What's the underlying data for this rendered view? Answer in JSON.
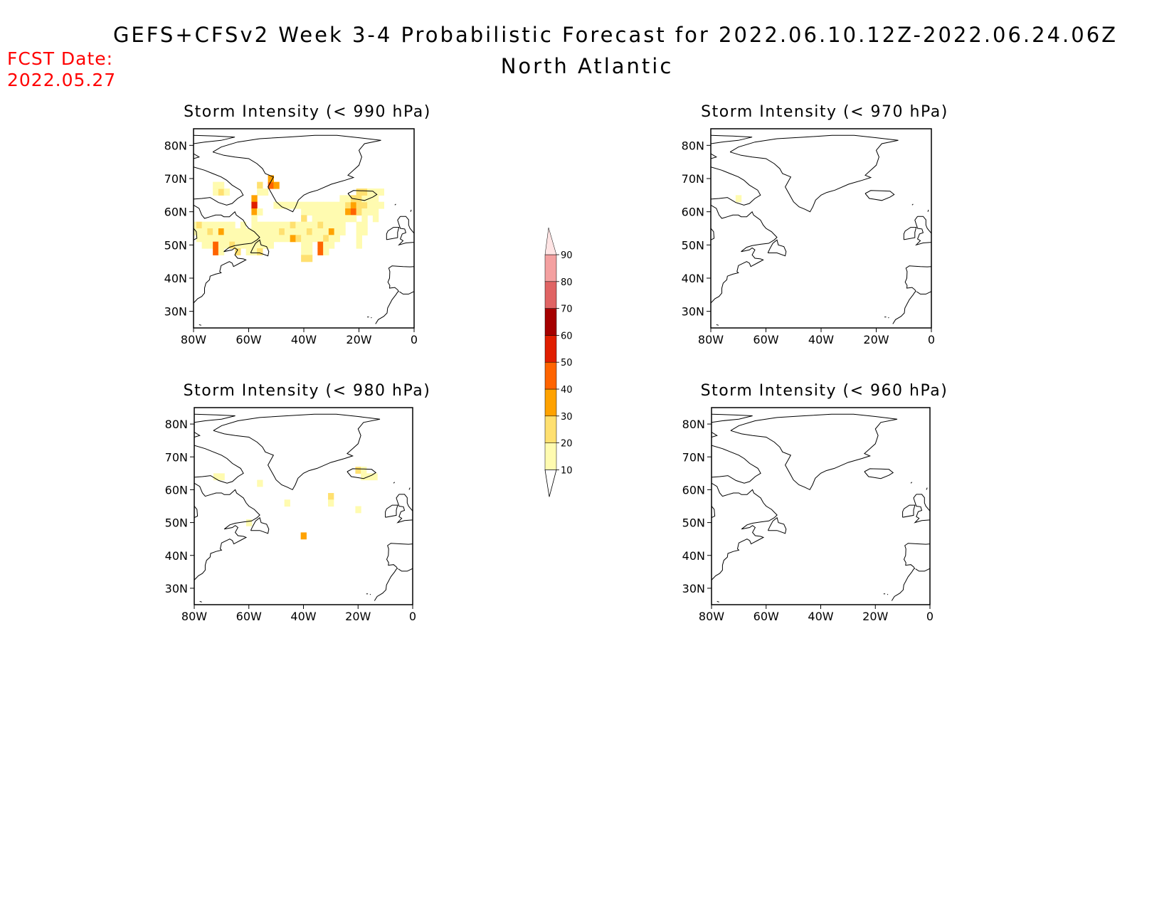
{
  "title": "GEFS+CFSv2 Week 3-4 Probabilistic Forecast for 2022.06.10.12Z-2022.06.24.06Z",
  "subtitle": "North Atlantic",
  "fcst_date_label": "FCST Date:",
  "fcst_date": "2022.05.27",
  "lat_labels": [
    "80N",
    "70N",
    "60N",
    "50N",
    "40N",
    "30N"
  ],
  "lon_labels": [
    "80W",
    "60W",
    "40W",
    "20W",
    "0"
  ],
  "colorbar": {
    "levels": [
      "10",
      "20",
      "30",
      "40",
      "50",
      "60",
      "70",
      "80",
      "90"
    ],
    "colors": [
      "#fffbb0",
      "#ffe070",
      "#ffa200",
      "#ff6400",
      "#e01e00",
      "#a50000",
      "#e06464",
      "#f4a0a0",
      "#ffe4e4"
    ]
  },
  "panels": [
    {
      "title": "Storm Intensity (< 990 hPa)",
      "cells": [
        [
          -72,
          66,
          1
        ],
        [
          -70,
          66,
          2
        ],
        [
          -72,
          68,
          1
        ],
        [
          -70,
          68,
          1
        ],
        [
          -68,
          66,
          1
        ],
        [
          -56,
          68,
          2
        ],
        [
          -56,
          66,
          1
        ],
        [
          -54,
          66,
          1
        ],
        [
          -52,
          68,
          4
        ],
        [
          -50,
          68,
          3
        ],
        [
          -52,
          70,
          3
        ],
        [
          -58,
          64,
          3
        ],
        [
          -58,
          62,
          5
        ],
        [
          -58,
          60,
          3
        ],
        [
          -56,
          60,
          1
        ],
        [
          -58,
          58,
          1
        ],
        [
          -50,
          62,
          1
        ],
        [
          -48,
          62,
          1
        ],
        [
          -46,
          62,
          1
        ],
        [
          -44,
          62,
          1
        ],
        [
          -42,
          62,
          1
        ],
        [
          -40,
          62,
          1
        ],
        [
          -38,
          62,
          1
        ],
        [
          -36,
          62,
          1
        ],
        [
          -34,
          62,
          1
        ],
        [
          -32,
          62,
          1
        ],
        [
          -30,
          62,
          1
        ],
        [
          -28,
          62,
          1
        ],
        [
          -26,
          62,
          1
        ],
        [
          -24,
          62,
          2
        ],
        [
          -22,
          62,
          3
        ],
        [
          -20,
          62,
          2
        ],
        [
          -18,
          62,
          2
        ],
        [
          -16,
          62,
          1
        ],
        [
          -14,
          62,
          1
        ],
        [
          -12,
          62,
          1
        ],
        [
          -26,
          64,
          1
        ],
        [
          -24,
          64,
          1
        ],
        [
          -22,
          64,
          2
        ],
        [
          -20,
          64,
          2
        ],
        [
          -18,
          64,
          1
        ],
        [
          -16,
          64,
          1
        ],
        [
          -14,
          64,
          1
        ],
        [
          -20,
          66,
          2
        ],
        [
          -18,
          66,
          2
        ],
        [
          -16,
          66,
          1
        ],
        [
          -14,
          66,
          1
        ],
        [
          -12,
          66,
          1
        ],
        [
          -40,
          60,
          1
        ],
        [
          -38,
          60,
          1
        ],
        [
          -36,
          60,
          1
        ],
        [
          -34,
          60,
          1
        ],
        [
          -32,
          60,
          1
        ],
        [
          -30,
          60,
          1
        ],
        [
          -28,
          60,
          1
        ],
        [
          -26,
          60,
          1
        ],
        [
          -24,
          60,
          3
        ],
        [
          -22,
          60,
          4
        ],
        [
          -20,
          60,
          2
        ],
        [
          -18,
          60,
          1
        ],
        [
          -16,
          60,
          1
        ],
        [
          -14,
          60,
          1
        ],
        [
          -40,
          58,
          2
        ],
        [
          -36,
          58,
          1
        ],
        [
          -34,
          58,
          1
        ],
        [
          -32,
          58,
          1
        ],
        [
          -30,
          58,
          1
        ],
        [
          -28,
          58,
          1
        ],
        [
          -26,
          58,
          1
        ],
        [
          -24,
          58,
          1
        ],
        [
          -22,
          58,
          1
        ],
        [
          -18,
          58,
          1
        ],
        [
          -14,
          58,
          1
        ],
        [
          -80,
          56,
          1
        ],
        [
          -78,
          56,
          2
        ],
        [
          -76,
          56,
          1
        ],
        [
          -74,
          56,
          1
        ],
        [
          -72,
          56,
          1
        ],
        [
          -70,
          56,
          1
        ],
        [
          -68,
          56,
          1
        ],
        [
          -66,
          56,
          1
        ],
        [
          -62,
          56,
          1
        ],
        [
          -58,
          56,
          1
        ],
        [
          -56,
          56,
          1
        ],
        [
          -54,
          56,
          1
        ],
        [
          -52,
          56,
          1
        ],
        [
          -50,
          56,
          1
        ],
        [
          -48,
          56,
          1
        ],
        [
          -46,
          56,
          1
        ],
        [
          -44,
          56,
          2
        ],
        [
          -42,
          56,
          1
        ],
        [
          -40,
          56,
          1
        ],
        [
          -38,
          56,
          1
        ],
        [
          -36,
          56,
          1
        ],
        [
          -34,
          56,
          2
        ],
        [
          -32,
          56,
          1
        ],
        [
          -30,
          56,
          1
        ],
        [
          -28,
          56,
          1
        ],
        [
          -26,
          56,
          1
        ],
        [
          -20,
          56,
          1
        ],
        [
          -18,
          56,
          1
        ],
        [
          -80,
          54,
          1
        ],
        [
          -78,
          54,
          1
        ],
        [
          -76,
          54,
          1
        ],
        [
          -74,
          54,
          2
        ],
        [
          -72,
          54,
          1
        ],
        [
          -70,
          54,
          3
        ],
        [
          -68,
          54,
          1
        ],
        [
          -66,
          54,
          1
        ],
        [
          -64,
          54,
          1
        ],
        [
          -62,
          54,
          1
        ],
        [
          -60,
          54,
          1
        ],
        [
          -58,
          54,
          1
        ],
        [
          -56,
          54,
          1
        ],
        [
          -54,
          54,
          1
        ],
        [
          -52,
          54,
          1
        ],
        [
          -50,
          54,
          1
        ],
        [
          -48,
          54,
          2
        ],
        [
          -46,
          54,
          1
        ],
        [
          -44,
          54,
          1
        ],
        [
          -42,
          54,
          1
        ],
        [
          -40,
          54,
          1
        ],
        [
          -38,
          54,
          2
        ],
        [
          -36,
          54,
          1
        ],
        [
          -34,
          54,
          1
        ],
        [
          -32,
          54,
          1
        ],
        [
          -30,
          54,
          3
        ],
        [
          -28,
          54,
          1
        ],
        [
          -26,
          54,
          1
        ],
        [
          -20,
          54,
          1
        ],
        [
          -18,
          54,
          1
        ],
        [
          -78,
          52,
          1
        ],
        [
          -76,
          52,
          1
        ],
        [
          -74,
          52,
          1
        ],
        [
          -72,
          52,
          1
        ],
        [
          -70,
          52,
          1
        ],
        [
          -68,
          52,
          1
        ],
        [
          -66,
          52,
          1
        ],
        [
          -64,
          52,
          1
        ],
        [
          -62,
          52,
          1
        ],
        [
          -60,
          52,
          1
        ],
        [
          -58,
          52,
          1
        ],
        [
          -56,
          52,
          1
        ],
        [
          -54,
          52,
          1
        ],
        [
          -52,
          52,
          1
        ],
        [
          -50,
          52,
          1
        ],
        [
          -48,
          52,
          1
        ],
        [
          -46,
          52,
          1
        ],
        [
          -44,
          52,
          3
        ],
        [
          -42,
          52,
          2
        ],
        [
          -40,
          52,
          1
        ],
        [
          -38,
          52,
          1
        ],
        [
          -36,
          52,
          1
        ],
        [
          -34,
          52,
          1
        ],
        [
          -32,
          52,
          2
        ],
        [
          -30,
          52,
          1
        ],
        [
          -28,
          52,
          1
        ],
        [
          -20,
          52,
          1
        ],
        [
          -76,
          50,
          1
        ],
        [
          -74,
          50,
          1
        ],
        [
          -72,
          50,
          4
        ],
        [
          -70,
          50,
          1
        ],
        [
          -68,
          50,
          1
        ],
        [
          -66,
          50,
          2
        ],
        [
          -64,
          50,
          1
        ],
        [
          -62,
          50,
          1
        ],
        [
          -60,
          50,
          1
        ],
        [
          -58,
          50,
          1
        ],
        [
          -56,
          50,
          1
        ],
        [
          -54,
          50,
          1
        ],
        [
          -52,
          50,
          1
        ],
        [
          -40,
          50,
          1
        ],
        [
          -38,
          50,
          1
        ],
        [
          -34,
          50,
          4
        ],
        [
          -32,
          50,
          1
        ],
        [
          -30,
          50,
          1
        ],
        [
          -20,
          50,
          1
        ],
        [
          -72,
          48,
          4
        ],
        [
          -70,
          48,
          1
        ],
        [
          -64,
          48,
          2
        ],
        [
          -60,
          48,
          1
        ],
        [
          -58,
          48,
          1
        ],
        [
          -56,
          48,
          2
        ],
        [
          -40,
          48,
          1
        ],
        [
          -38,
          48,
          1
        ],
        [
          -34,
          48,
          4
        ],
        [
          -32,
          48,
          1
        ],
        [
          -40,
          46,
          2
        ],
        [
          -38,
          46,
          2
        ]
      ]
    },
    {
      "title": "Storm Intensity (< 970 hPa)",
      "cells": [
        [
          -70,
          64,
          1
        ]
      ]
    },
    {
      "title": "Storm Intensity (< 980 hPa)",
      "cells": [
        [
          -72,
          64,
          1
        ],
        [
          -70,
          64,
          1
        ],
        [
          -56,
          62,
          1
        ],
        [
          -20,
          66,
          2
        ],
        [
          -18,
          66,
          1
        ],
        [
          -16,
          64,
          1
        ],
        [
          -14,
          64,
          1
        ],
        [
          -18,
          64,
          1
        ],
        [
          -30,
          58,
          2
        ],
        [
          -30,
          56,
          1
        ],
        [
          -46,
          56,
          1
        ],
        [
          -20,
          54,
          1
        ],
        [
          -60,
          50,
          1
        ],
        [
          -40,
          46,
          3
        ]
      ]
    },
    {
      "title": "Storm Intensity (< 960 hPa)",
      "cells": []
    }
  ]
}
